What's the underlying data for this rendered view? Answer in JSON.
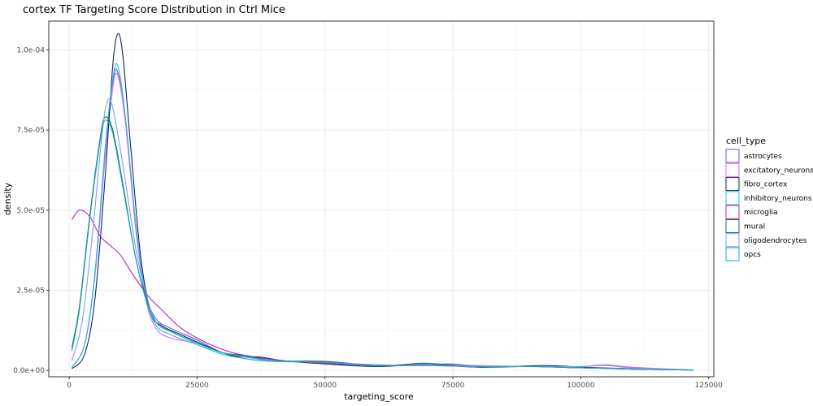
{
  "chart_data": {
    "type": "line",
    "title": "cortex TF Targeting Score Distribution in Ctrl Mice",
    "xlabel": "targeting_score",
    "ylabel": "density",
    "xlim": [
      -4000,
      126000
    ],
    "ylim": [
      -2e-06,
      0.000109
    ],
    "x_ticks": [
      0,
      25000,
      50000,
      75000,
      100000,
      125000
    ],
    "x_tick_labels": [
      "0",
      "25000",
      "50000",
      "75000",
      "100000",
      "125000"
    ],
    "y_ticks": [
      0,
      2.5e-05,
      5e-05,
      7.5e-05,
      0.0001
    ],
    "y_tick_labels": [
      "0.0e+00",
      "2.5e-05",
      "5.0e-05",
      "7.5e-05",
      "1.0e-04"
    ],
    "grid": true,
    "legend_title": "cell_type",
    "legend_position": "right",
    "series": [
      {
        "name": "astrocytes",
        "color": "#6a5acd",
        "points": [
          [
            500,
            1e-06
          ],
          [
            3000,
            8e-06
          ],
          [
            5000,
            3e-05
          ],
          [
            7000,
            6.8e-05
          ],
          [
            8500,
            9e-05
          ],
          [
            9500,
            9.3e-05
          ],
          [
            11000,
            7.8e-05
          ],
          [
            13000,
            4.5e-05
          ],
          [
            15000,
            2.4e-05
          ],
          [
            17000,
            1.6e-05
          ],
          [
            20000,
            1.3e-05
          ],
          [
            25000,
            9.5e-06
          ],
          [
            30000,
            5.5e-06
          ],
          [
            35000,
            4e-06
          ],
          [
            40000,
            3e-06
          ],
          [
            50000,
            2.5e-06
          ],
          [
            60000,
            1.5e-06
          ],
          [
            70000,
            1.8e-06
          ],
          [
            80000,
            1.2e-06
          ],
          [
            90000,
            1.2e-06
          ],
          [
            100000,
            1e-06
          ],
          [
            110000,
            5e-07
          ],
          [
            122000,
            1e-07
          ]
        ]
      },
      {
        "name": "excitatory_neurons",
        "color": "#e066ff",
        "points": [
          [
            500,
            1e-06
          ],
          [
            3000,
            8e-06
          ],
          [
            5000,
            2.9e-05
          ],
          [
            7000,
            6.6e-05
          ],
          [
            8500,
            8.8e-05
          ],
          [
            9500,
            9.2e-05
          ],
          [
            11000,
            7.7e-05
          ],
          [
            13000,
            4.4e-05
          ],
          [
            15000,
            2.2e-05
          ],
          [
            17000,
            1.3e-05
          ],
          [
            20000,
            1e-05
          ],
          [
            25000,
            8.5e-06
          ],
          [
            30000,
            5.5e-06
          ],
          [
            35000,
            3.5e-06
          ],
          [
            40000,
            2.8e-06
          ],
          [
            50000,
            2.5e-06
          ],
          [
            60000,
            1.5e-06
          ],
          [
            70000,
            2e-06
          ],
          [
            80000,
            1.5e-06
          ],
          [
            90000,
            1.2e-06
          ],
          [
            100000,
            1.2e-06
          ],
          [
            105000,
            1.8e-06
          ],
          [
            110000,
            1e-06
          ],
          [
            122000,
            1e-07
          ]
        ]
      },
      {
        "name": "fibro_cortex",
        "color": "#0b2a5a",
        "points": [
          [
            500,
            5e-07
          ],
          [
            3000,
            5e-06
          ],
          [
            5000,
            2.2e-05
          ],
          [
            7000,
            6e-05
          ],
          [
            8500,
            9.5e-05
          ],
          [
            9500,
            0.000105
          ],
          [
            10500,
            9.8e-05
          ],
          [
            12000,
            7e-05
          ],
          [
            14000,
            3.5e-05
          ],
          [
            16000,
            1.8e-05
          ],
          [
            18000,
            1.4e-05
          ],
          [
            22000,
            1.1e-05
          ],
          [
            27000,
            7.5e-06
          ],
          [
            32000,
            4.5e-06
          ],
          [
            37000,
            4.2e-06
          ],
          [
            42000,
            3e-06
          ],
          [
            50000,
            2e-06
          ],
          [
            60000,
            1.2e-06
          ],
          [
            70000,
            1.8e-06
          ],
          [
            80000,
            1e-06
          ],
          [
            93000,
            1.5e-06
          ],
          [
            100000,
            1e-06
          ],
          [
            110000,
            4e-07
          ],
          [
            122000,
            1e-07
          ]
        ]
      },
      {
        "name": "inhibitory_neurons",
        "color": "#20c0d8",
        "points": [
          [
            500,
            1e-06
          ],
          [
            3000,
            8e-06
          ],
          [
            5000,
            3e-05
          ],
          [
            7000,
            6.9e-05
          ],
          [
            8500,
            9.1e-05
          ],
          [
            9500,
            9.5e-05
          ],
          [
            11000,
            7.9e-05
          ],
          [
            13000,
            4.6e-05
          ],
          [
            15000,
            2.3e-05
          ],
          [
            17000,
            1.4e-05
          ],
          [
            20000,
            1.1e-05
          ],
          [
            25000,
            8e-06
          ],
          [
            30000,
            5e-06
          ],
          [
            35000,
            3.5e-06
          ],
          [
            40000,
            2.8e-06
          ],
          [
            50000,
            2.5e-06
          ],
          [
            60000,
            1.5e-06
          ],
          [
            70000,
            1.5e-06
          ],
          [
            80000,
            1.2e-06
          ],
          [
            90000,
            1.2e-06
          ],
          [
            100000,
            8e-07
          ],
          [
            110000,
            5e-07
          ],
          [
            122000,
            1e-07
          ]
        ]
      },
      {
        "name": "microglia",
        "color": "#c020b0",
        "points": [
          [
            500,
            4.7e-05
          ],
          [
            2000,
            5e-05
          ],
          [
            4000,
            4.8e-05
          ],
          [
            6000,
            4.2e-05
          ],
          [
            8000,
            3.9e-05
          ],
          [
            10000,
            3.6e-05
          ],
          [
            12000,
            3.1e-05
          ],
          [
            15000,
            2.4e-05
          ],
          [
            18000,
            1.9e-05
          ],
          [
            22000,
            1.3e-05
          ],
          [
            27000,
            8.5e-06
          ],
          [
            32000,
            5.5e-06
          ],
          [
            37000,
            4e-06
          ],
          [
            42000,
            3e-06
          ],
          [
            50000,
            2.2e-06
          ],
          [
            60000,
            1.5e-06
          ],
          [
            70000,
            1.5e-06
          ],
          [
            80000,
            1.2e-06
          ],
          [
            90000,
            1.2e-06
          ],
          [
            100000,
            8e-07
          ],
          [
            110000,
            5e-07
          ],
          [
            122000,
            1e-07
          ]
        ]
      },
      {
        "name": "mural",
        "color": "#1a6a6a",
        "points": [
          [
            500,
            7e-06
          ],
          [
            2000,
            2e-05
          ],
          [
            4000,
            4.8e-05
          ],
          [
            6000,
            7.2e-05
          ],
          [
            7000,
            7.9e-05
          ],
          [
            8500,
            7.5e-05
          ],
          [
            10500,
            5.8e-05
          ],
          [
            13000,
            3.5e-05
          ],
          [
            15000,
            2.3e-05
          ],
          [
            17000,
            1.5e-05
          ],
          [
            20000,
            1.2e-05
          ],
          [
            25000,
            8.5e-06
          ],
          [
            30000,
            5.5e-06
          ],
          [
            35000,
            4.5e-06
          ],
          [
            40000,
            3e-06
          ],
          [
            50000,
            2.8e-06
          ],
          [
            60000,
            1.5e-06
          ],
          [
            65000,
            1.8e-06
          ],
          [
            70000,
            2.2e-06
          ],
          [
            80000,
            1e-06
          ],
          [
            90000,
            1.2e-06
          ],
          [
            100000,
            8e-07
          ],
          [
            110000,
            4e-07
          ],
          [
            122000,
            1e-07
          ]
        ]
      },
      {
        "name": "oligodendrocytes",
        "color": "#7b9cf0",
        "points": [
          [
            500,
            3e-06
          ],
          [
            2500,
            1.5e-05
          ],
          [
            4500,
            4.2e-05
          ],
          [
            6500,
            7.5e-05
          ],
          [
            7500,
            8.4e-05
          ],
          [
            8500,
            8.2e-05
          ],
          [
            10500,
            6.4e-05
          ],
          [
            13000,
            3.8e-05
          ],
          [
            15000,
            2.4e-05
          ],
          [
            17000,
            1.5e-05
          ],
          [
            20000,
            1.2e-05
          ],
          [
            25000,
            8.5e-06
          ],
          [
            30000,
            5.5e-06
          ],
          [
            35000,
            4e-06
          ],
          [
            40000,
            3e-06
          ],
          [
            50000,
            2.5e-06
          ],
          [
            60000,
            1.8e-06
          ],
          [
            70000,
            1.5e-06
          ],
          [
            80000,
            1.2e-06
          ],
          [
            90000,
            1.2e-06
          ],
          [
            100000,
            1.2e-06
          ],
          [
            105000,
            1.5e-06
          ],
          [
            110000,
            8e-07
          ],
          [
            122000,
            1e-07
          ]
        ]
      },
      {
        "name": "opcs",
        "color": "#1aa8c0",
        "points": [
          [
            500,
            6e-06
          ],
          [
            2000,
            1.9e-05
          ],
          [
            4000,
            4.7e-05
          ],
          [
            6000,
            7.1e-05
          ],
          [
            7000,
            7.8e-05
          ],
          [
            8500,
            7.4e-05
          ],
          [
            10500,
            5.7e-05
          ],
          [
            13000,
            3.5e-05
          ],
          [
            15000,
            2.2e-05
          ],
          [
            17000,
            1.5e-05
          ],
          [
            20000,
            1.2e-05
          ],
          [
            25000,
            8.5e-06
          ],
          [
            30000,
            5.5e-06
          ],
          [
            35000,
            4.2e-06
          ],
          [
            40000,
            3e-06
          ],
          [
            50000,
            2.5e-06
          ],
          [
            60000,
            1.5e-06
          ],
          [
            70000,
            1.8e-06
          ],
          [
            75000,
            2e-06
          ],
          [
            80000,
            1.2e-06
          ],
          [
            90000,
            1.2e-06
          ],
          [
            100000,
            8e-07
          ],
          [
            110000,
            4e-07
          ],
          [
            122000,
            1e-07
          ]
        ]
      }
    ]
  }
}
